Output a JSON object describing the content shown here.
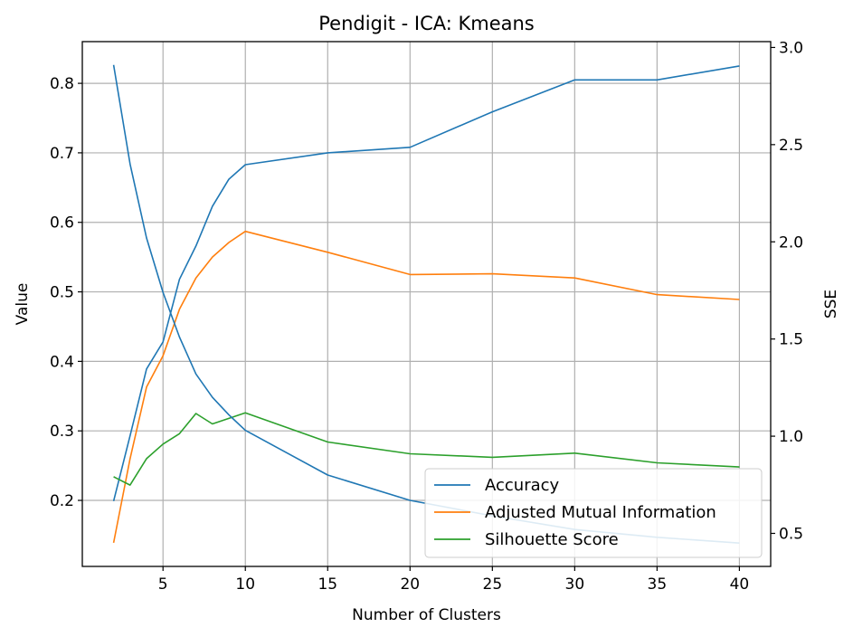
{
  "chart_data": {
    "type": "line",
    "title": "Pendigit - ICA: Kmeans",
    "xlabel": "Number of Clusters",
    "ylabel": "Value",
    "y2label": "SSE",
    "xlim": [
      0.1,
      41.9
    ],
    "ylim": [
      0.105,
      0.86
    ],
    "y2lim": [
      0.33,
      3.03
    ],
    "xticks": [
      5,
      10,
      15,
      20,
      25,
      30,
      35,
      40
    ],
    "yticks": [
      0.2,
      0.3,
      0.4,
      0.5,
      0.6,
      0.7,
      0.8
    ],
    "y2ticks": [
      0.5,
      1.0,
      1.5,
      2.0,
      2.5,
      3.0
    ],
    "grid": true,
    "legend": "lower-right",
    "x": [
      2,
      3,
      4,
      5,
      6,
      7,
      8,
      9,
      10,
      15,
      20,
      25,
      30,
      35,
      40
    ],
    "series": [
      {
        "name": "Accuracy",
        "color": "#1f77b4",
        "axis": "left",
        "values": [
          0.199,
          0.293,
          0.389,
          0.428,
          0.518,
          0.566,
          0.623,
          0.662,
          0.683,
          0.7,
          0.708,
          0.759,
          0.805,
          0.805,
          0.825
        ]
      },
      {
        "name": "Adjusted Mutual Information",
        "color": "#ff7f0e",
        "axis": "left",
        "values": [
          0.139,
          0.26,
          0.363,
          0.408,
          0.475,
          0.52,
          0.55,
          0.571,
          0.587,
          0.557,
          0.525,
          0.526,
          0.52,
          0.496,
          0.489
        ]
      },
      {
        "name": "Silhouette Score",
        "color": "#2ca02c",
        "axis": "left",
        "values": [
          0.234,
          0.222,
          0.26,
          0.281,
          0.296,
          0.325,
          0.31,
          0.318,
          0.326,
          0.284,
          0.267,
          0.262,
          0.268,
          0.254,
          0.248
        ]
      },
      {
        "name": "SSE",
        "color": "#1f77b4",
        "axis": "right",
        "legend": false,
        "values": [
          2.91,
          2.4,
          2.02,
          1.74,
          1.51,
          1.32,
          1.2,
          1.11,
          1.03,
          0.8,
          0.67,
          0.59,
          0.52,
          0.48,
          0.45
        ]
      }
    ]
  }
}
